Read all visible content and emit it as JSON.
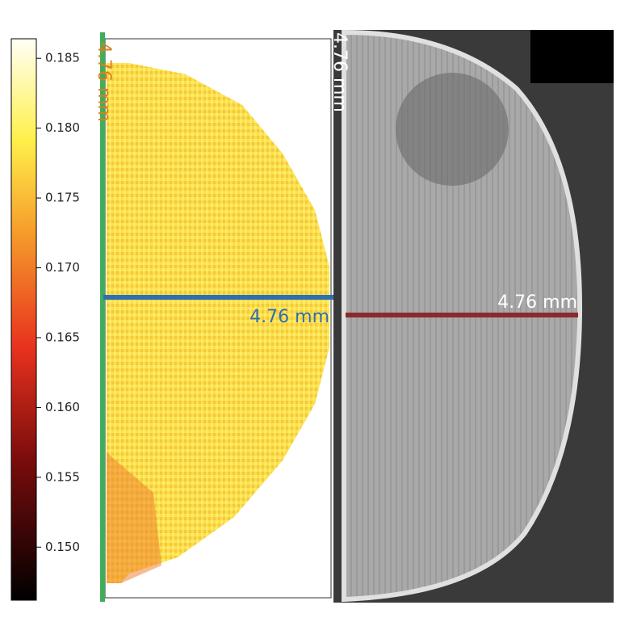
{
  "colorbar": {
    "lim": [
      0.1462,
      0.1864
    ],
    "ticks": [
      0.185,
      {
        "value": 0.18,
        "label": "0.180"
      },
      0.175,
      {
        "value": 0.17,
        "label": "0.170"
      },
      0.165,
      {
        "value": 0.16,
        "label": "0.160"
      },
      0.155,
      {
        "value": 0.15,
        "label": "0.150"
      }
    ]
  },
  "heatmap": {
    "vertical_label": "4.76 mm",
    "horizontal_label": "4.76 mm"
  },
  "micrograph": {
    "vertical_label": "4.76 mm",
    "horizontal_label": "4.76 mm"
  }
}
